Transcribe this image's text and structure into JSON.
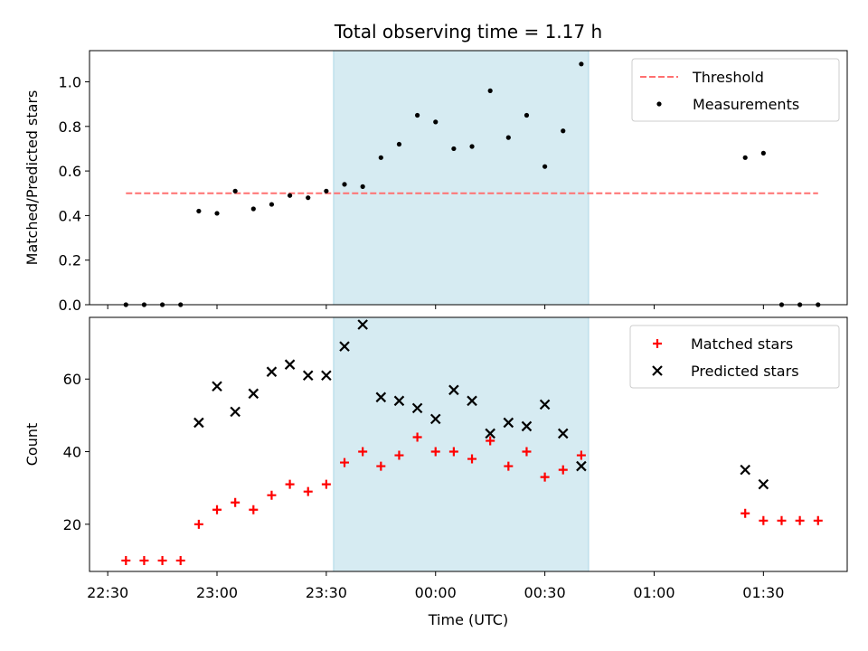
{
  "title": "Total observing time = 1.17 h",
  "colors": {
    "threshold": "#ff7070",
    "measurements": "#000000",
    "matched": "#ff0000",
    "predicted": "#000000",
    "shade": "#add8e6"
  },
  "chart_data": [
    {
      "type": "scatter",
      "ylabel": "Matched/Predicted stars",
      "ylim": [
        0,
        1.14
      ],
      "yticks": [
        "0.0",
        "0.2",
        "0.4",
        "0.6",
        "0.8",
        "1.0"
      ],
      "xlim": [
        "22:25",
        "01:53"
      ],
      "shaded_region": [
        "23:32",
        "00:42"
      ],
      "legend": {
        "placement": "top-right",
        "entries": [
          "Threshold",
          "Measurements"
        ]
      },
      "threshold": {
        "name": "Threshold",
        "value": 0.5,
        "x_range": [
          "22:35",
          "01:45"
        ]
      },
      "series": [
        {
          "name": "Measurements",
          "points": [
            [
              "22:35",
              0.0
            ],
            [
              "22:40",
              0.0
            ],
            [
              "22:45",
              0.0
            ],
            [
              "22:50",
              0.0
            ],
            [
              "22:55",
              0.42
            ],
            [
              "23:00",
              0.41
            ],
            [
              "23:05",
              0.51
            ],
            [
              "23:10",
              0.43
            ],
            [
              "23:15",
              0.45
            ],
            [
              "23:20",
              0.49
            ],
            [
              "23:25",
              0.48
            ],
            [
              "23:30",
              0.51
            ],
            [
              "23:35",
              0.54
            ],
            [
              "23:40",
              0.53
            ],
            [
              "23:45",
              0.66
            ],
            [
              "23:50",
              0.72
            ],
            [
              "23:55",
              0.85
            ],
            [
              "00:00",
              0.82
            ],
            [
              "00:05",
              0.7
            ],
            [
              "00:10",
              0.71
            ],
            [
              "00:15",
              0.96
            ],
            [
              "00:20",
              0.75
            ],
            [
              "00:25",
              0.85
            ],
            [
              "00:30",
              0.62
            ],
            [
              "00:35",
              0.78
            ],
            [
              "00:40",
              1.08
            ],
            [
              "01:25",
              0.66
            ],
            [
              "01:30",
              0.68
            ],
            [
              "01:35",
              0.0
            ],
            [
              "01:40",
              0.0
            ],
            [
              "01:45",
              0.0
            ]
          ]
        }
      ]
    },
    {
      "type": "scatter",
      "ylabel": "Count",
      "xlabel": "Time (UTC)",
      "ylim": [
        7,
        77
      ],
      "yticks": [
        "20",
        "40",
        "60"
      ],
      "xlim": [
        "22:25",
        "01:53"
      ],
      "xticks": [
        "22:30",
        "23:00",
        "23:30",
        "00:00",
        "00:30",
        "01:00",
        "01:30"
      ],
      "shaded_region": [
        "23:32",
        "00:42"
      ],
      "legend": {
        "placement": "top-right",
        "entries": [
          "Matched stars",
          "Predicted stars"
        ]
      },
      "series": [
        {
          "name": "Matched stars",
          "points": [
            [
              "22:35",
              10
            ],
            [
              "22:40",
              10
            ],
            [
              "22:45",
              10
            ],
            [
              "22:50",
              10
            ],
            [
              "22:55",
              20
            ],
            [
              "23:00",
              24
            ],
            [
              "23:05",
              26
            ],
            [
              "23:10",
              24
            ],
            [
              "23:15",
              28
            ],
            [
              "23:20",
              31
            ],
            [
              "23:25",
              29
            ],
            [
              "23:30",
              31
            ],
            [
              "23:35",
              37
            ],
            [
              "23:40",
              40
            ],
            [
              "23:45",
              36
            ],
            [
              "23:50",
              39
            ],
            [
              "23:55",
              44
            ],
            [
              "00:00",
              40
            ],
            [
              "00:05",
              40
            ],
            [
              "00:10",
              38
            ],
            [
              "00:15",
              43
            ],
            [
              "00:20",
              36
            ],
            [
              "00:25",
              40
            ],
            [
              "00:30",
              33
            ],
            [
              "00:35",
              35
            ],
            [
              "00:40",
              39
            ],
            [
              "01:25",
              23
            ],
            [
              "01:30",
              21
            ],
            [
              "01:35",
              21
            ],
            [
              "01:40",
              21
            ],
            [
              "01:45",
              21
            ]
          ]
        },
        {
          "name": "Predicted stars",
          "points": [
            [
              "22:55",
              48
            ],
            [
              "23:00",
              58
            ],
            [
              "23:05",
              51
            ],
            [
              "23:10",
              56
            ],
            [
              "23:15",
              62
            ],
            [
              "23:20",
              64
            ],
            [
              "23:25",
              61
            ],
            [
              "23:30",
              61
            ],
            [
              "23:35",
              69
            ],
            [
              "23:40",
              75
            ],
            [
              "23:45",
              55
            ],
            [
              "23:50",
              54
            ],
            [
              "23:55",
              52
            ],
            [
              "00:00",
              49
            ],
            [
              "00:05",
              57
            ],
            [
              "00:10",
              54
            ],
            [
              "00:15",
              45
            ],
            [
              "00:20",
              48
            ],
            [
              "00:25",
              47
            ],
            [
              "00:30",
              53
            ],
            [
              "00:35",
              45
            ],
            [
              "00:40",
              36
            ],
            [
              "01:25",
              35
            ],
            [
              "01:30",
              31
            ]
          ]
        }
      ]
    }
  ]
}
